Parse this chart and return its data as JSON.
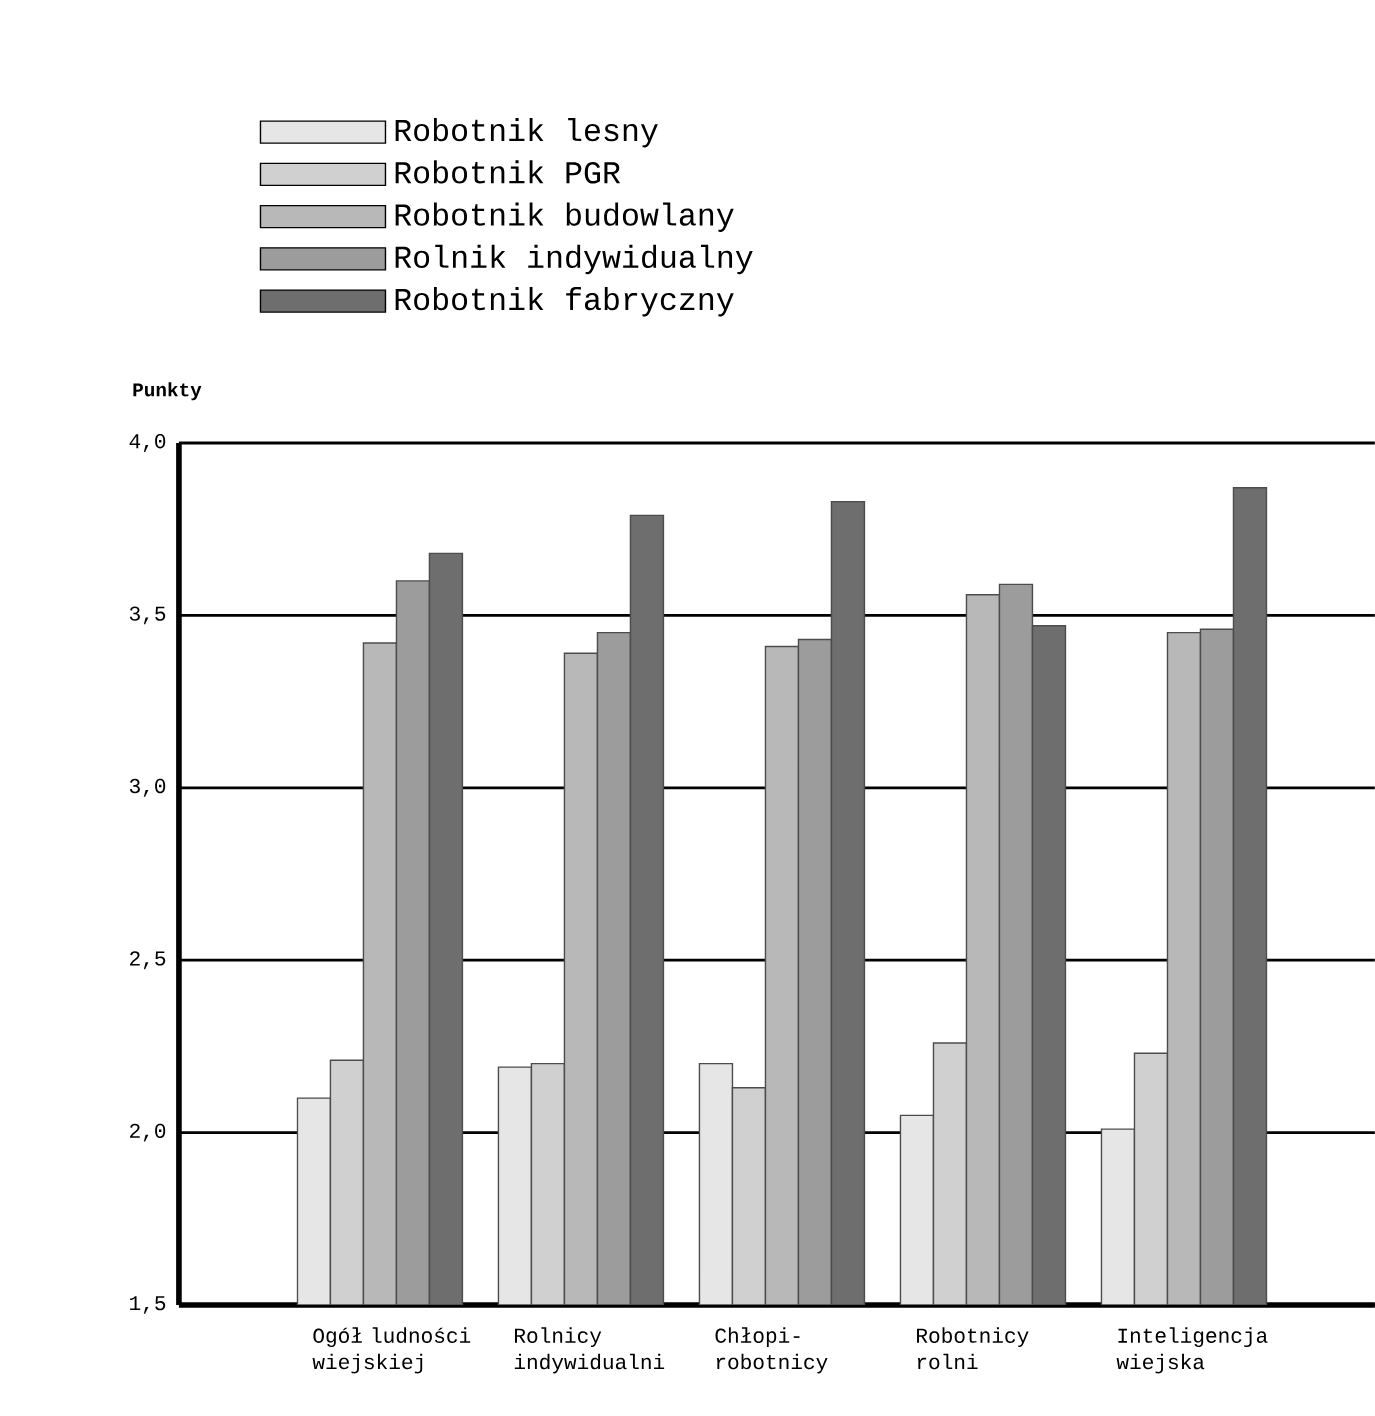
{
  "chart_data": {
    "type": "bar",
    "ylabel": "Punkty",
    "categories": [
      "Ogół ludności wiejskiej",
      "Rolnicy indywidualni",
      "Chłopi-robotnicy",
      "Robotnicy rolni",
      "Inteligencja wiejska"
    ],
    "series": [
      {
        "name": "Robotnik lesny",
        "color": "#e6e6e6",
        "values": [
          2.1,
          2.19,
          2.2,
          2.05,
          2.01
        ]
      },
      {
        "name": "Robotnik PGR",
        "color": "#d0d0d0",
        "values": [
          2.21,
          2.2,
          2.13,
          2.26,
          2.23
        ]
      },
      {
        "name": "Robotnik budowlany",
        "color": "#b8b8b8",
        "values": [
          3.42,
          3.39,
          3.41,
          3.56,
          3.45
        ]
      },
      {
        "name": "Rolnik indywidualny",
        "color": "#9c9c9c",
        "values": [
          3.6,
          3.45,
          3.43,
          3.59,
          3.46
        ]
      },
      {
        "name": "Robotnik fabryczny",
        "color": "#6e6e6e",
        "values": [
          3.68,
          3.79,
          3.83,
          3.47,
          3.87
        ]
      }
    ],
    "ylim": [
      1.5,
      4.0
    ],
    "yticks": [
      {
        "value": 1.5,
        "label": "1,5"
      },
      {
        "value": 2.0,
        "label": "2,0"
      },
      {
        "value": 2.5,
        "label": "2,5"
      },
      {
        "value": 3.0,
        "label": "3,0"
      },
      {
        "value": 3.5,
        "label": "3,5"
      },
      {
        "value": 4.0,
        "label": "4,0"
      }
    ],
    "grid": "y",
    "legend": "top left"
  }
}
